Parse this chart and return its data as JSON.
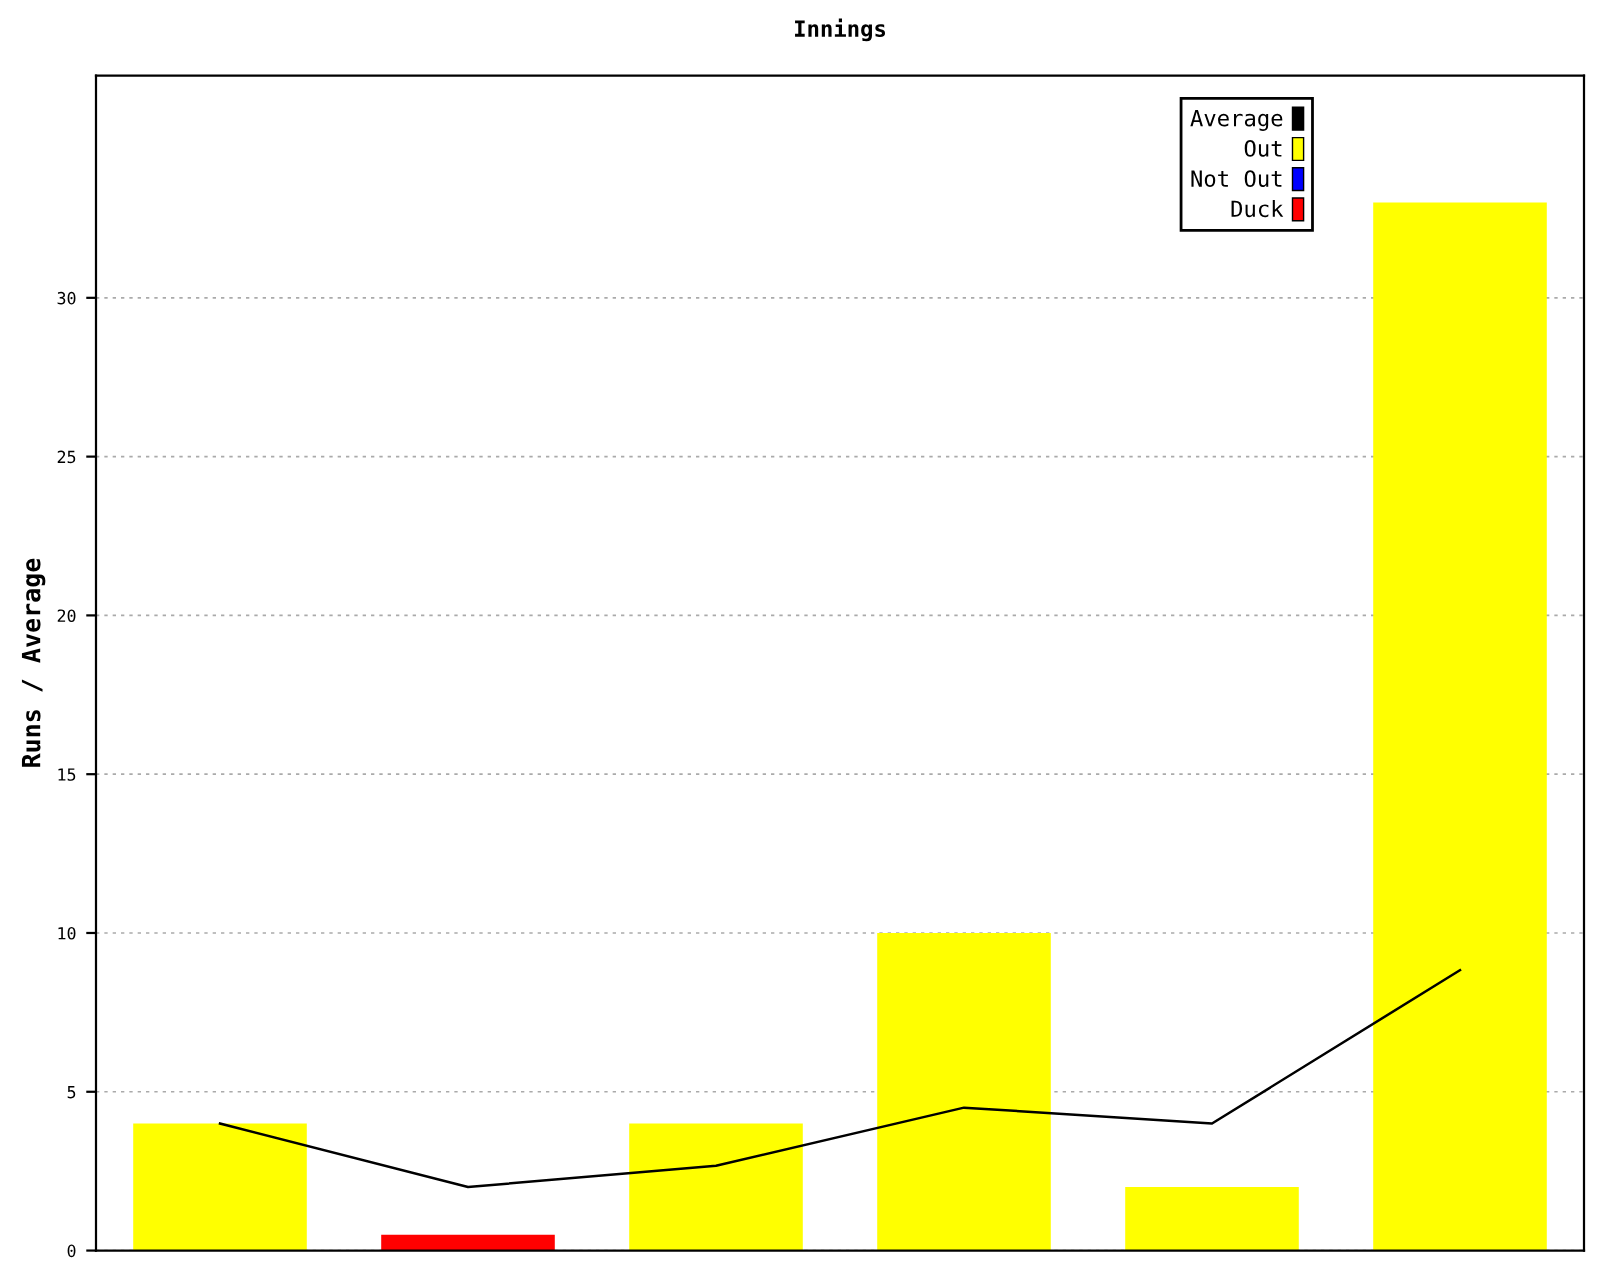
{
  "chart_data": {
    "type": "bar",
    "title": "Innings",
    "ylabel": "Runs / Average",
    "categories": [
      null,
      null,
      null,
      null,
      null,
      null
    ],
    "series": [
      {
        "name": "Average",
        "type": "line",
        "color": "#000000",
        "values": [
          4,
          2,
          2.67,
          4.5,
          4,
          8.83
        ]
      },
      {
        "name": "Out",
        "color": "#ffff00",
        "values": [
          4,
          null,
          4,
          10,
          2,
          33
        ]
      },
      {
        "name": "Not Out",
        "color": "#0000ff",
        "values": [
          null,
          null,
          null,
          null,
          null,
          null
        ]
      },
      {
        "name": "Duck",
        "color": "#ff0000",
        "values": [
          null,
          0.5,
          null,
          null,
          null,
          null
        ]
      }
    ],
    "ylim": [
      0,
      37
    ],
    "yticks": [
      0,
      5,
      10,
      15,
      20,
      25,
      30
    ],
    "grid": "y",
    "legend": "top right"
  }
}
